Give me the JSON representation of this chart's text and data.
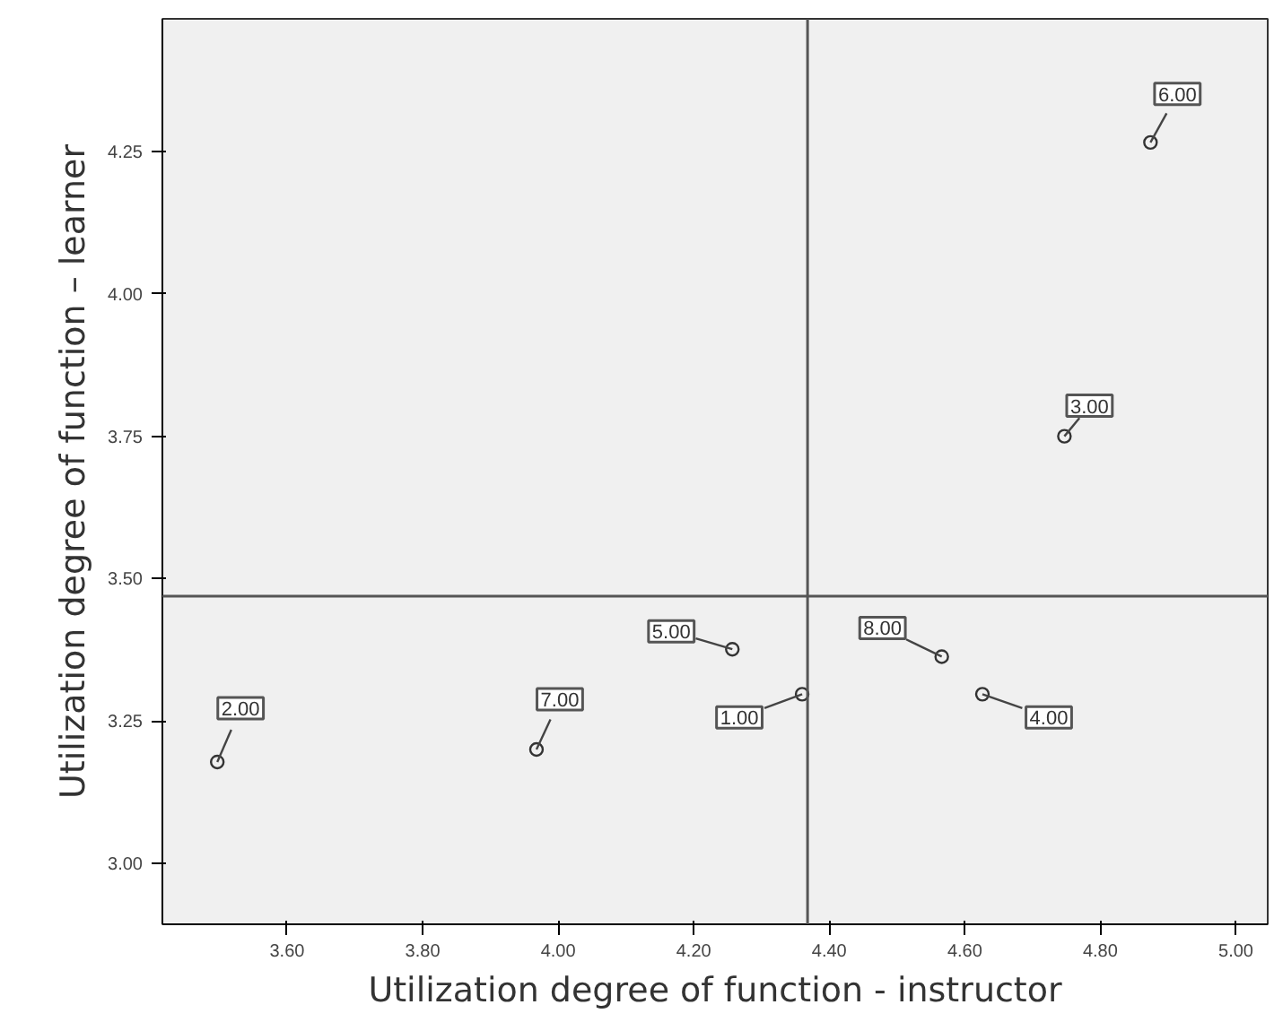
{
  "chart_data": {
    "type": "scatter",
    "xlabel": "Utilization degree of function - instructor",
    "ylabel": "Utilization degree of function – learner",
    "x": [
      4.36,
      3.497,
      4.747,
      4.626,
      4.257,
      4.874,
      3.968,
      4.566
    ],
    "values": [
      3.297,
      3.178,
      3.75,
      3.297,
      3.376,
      4.266,
      3.2,
      3.363
    ],
    "color": "#333333",
    "marker": "circle",
    "xlim": [
      3.416,
      5.047
    ],
    "xticks": [
      {
        "value": 3.6,
        "label": "3.60"
      },
      {
        "value": 3.8,
        "label": "3.80"
      },
      {
        "value": 4.0,
        "label": "4.00"
      },
      {
        "value": 4.2,
        "label": "4.20"
      },
      {
        "value": 4.4,
        "label": "4.40"
      },
      {
        "value": 4.6,
        "label": "4.60"
      },
      {
        "value": 4.8,
        "label": "4.80"
      },
      {
        "value": 5.0,
        "label": "5.00"
      }
    ],
    "ylim": [
      2.893,
      4.483
    ],
    "yticks": [
      {
        "value": 3.0,
        "label": "3.00"
      },
      {
        "value": 3.25,
        "label": "3.25"
      },
      {
        "value": 3.5,
        "label": "3.50"
      },
      {
        "value": 3.75,
        "label": "3.75"
      },
      {
        "value": 4.0,
        "label": "4.00"
      },
      {
        "value": 4.25,
        "label": "4.25"
      }
    ],
    "ref_lines": [
      {
        "axis": "x",
        "value": 4.368,
        "color": "#555555"
      },
      {
        "axis": "y",
        "value": 3.469,
        "color": "#555555"
      }
    ],
    "annotations": [
      {
        "text": "1.00",
        "x": 4.36,
        "y": 3.297
      },
      {
        "text": "2.00",
        "x": 3.497,
        "y": 3.178
      },
      {
        "text": "3.00",
        "x": 4.747,
        "y": 3.75
      },
      {
        "text": "4.00",
        "x": 4.626,
        "y": 3.297
      },
      {
        "text": "5.00",
        "x": 4.257,
        "y": 3.376
      },
      {
        "text": "6.00",
        "x": 4.874,
        "y": 4.266
      },
      {
        "text": "7.00",
        "x": 3.968,
        "y": 3.2
      },
      {
        "text": "8.00",
        "x": 4.566,
        "y": 3.363
      }
    ],
    "grid": false
  }
}
